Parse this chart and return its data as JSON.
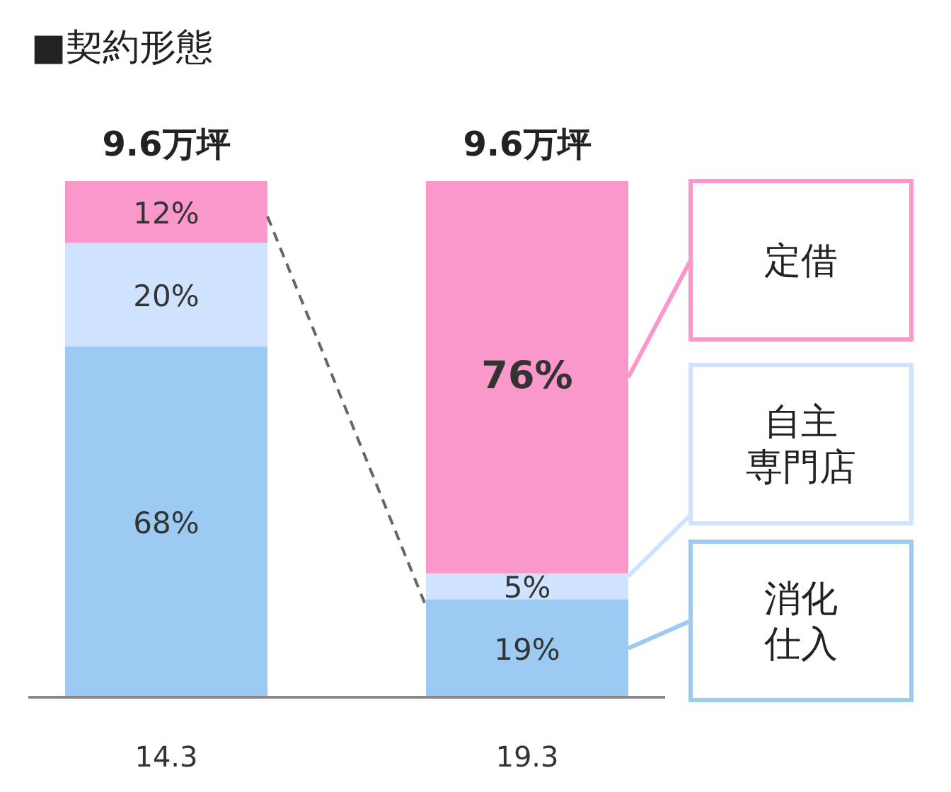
{
  "chart_data": {
    "type": "bar",
    "title": "■契約形態",
    "stacked": true,
    "categories": [
      "14.3",
      "19.3"
    ],
    "series": [
      {
        "name": "消化仕入",
        "color": "#9ccaf3",
        "values": [
          68,
          19
        ],
        "value_labels": [
          "68%",
          "19%"
        ]
      },
      {
        "name": "自主専門店",
        "color": "#cfe3ff",
        "values": [
          20,
          5
        ],
        "value_labels": [
          "20%",
          "5%"
        ]
      },
      {
        "name": "定借",
        "color": "#fa98cb",
        "values": [
          12,
          76
        ],
        "value_labels": [
          "12%",
          "76%"
        ]
      }
    ],
    "annotations": [
      "9.6万坪",
      "9.6万坪"
    ],
    "legend": "right"
  }
}
